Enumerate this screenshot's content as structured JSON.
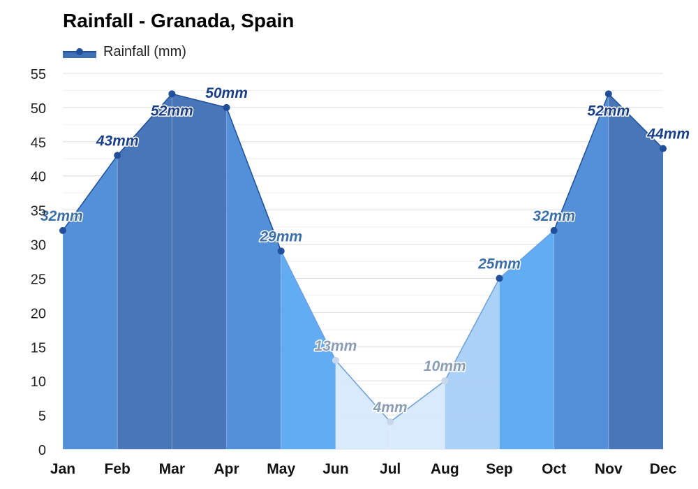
{
  "chart_data": {
    "type": "area",
    "title": "Rainfall - Granada, Spain",
    "legend": {
      "label": "Rainfall (mm)",
      "placement": "top-left"
    },
    "categories": [
      "Jan",
      "Feb",
      "Mar",
      "Apr",
      "May",
      "Jun",
      "Jul",
      "Aug",
      "Sep",
      "Oct",
      "Nov",
      "Dec"
    ],
    "series": [
      {
        "name": "Rainfall (mm)",
        "values": [
          32,
          43,
          52,
          50,
          29,
          13,
          4,
          10,
          25,
          32,
          52,
          44
        ]
      }
    ],
    "data_labels": [
      "32mm",
      "43mm",
      "52mm",
      "50mm",
      "29mm",
      "13mm",
      "4mm",
      "10mm",
      "25mm",
      "32mm",
      "52mm",
      "44mm"
    ],
    "y_ticks": [
      "0",
      "5",
      "10",
      "15",
      "20",
      "25",
      "30",
      "35",
      "40",
      "45",
      "50",
      "55"
    ],
    "ylim": [
      0,
      55
    ],
    "grid": true,
    "colors": {
      "shade_wettest": "#3f6fb5",
      "shade_wet": "#4a8ad6",
      "shade_mid": "#5aa8f2",
      "shade_low": "#a8cff5",
      "shade_dry": "#d6e9fb",
      "shade_driest": "#eaf3fd",
      "line": "#1f4f99",
      "label_dark": "#1a3f8a",
      "label_mid": "#3a6ea8",
      "label_light": "#8a9db5"
    }
  }
}
